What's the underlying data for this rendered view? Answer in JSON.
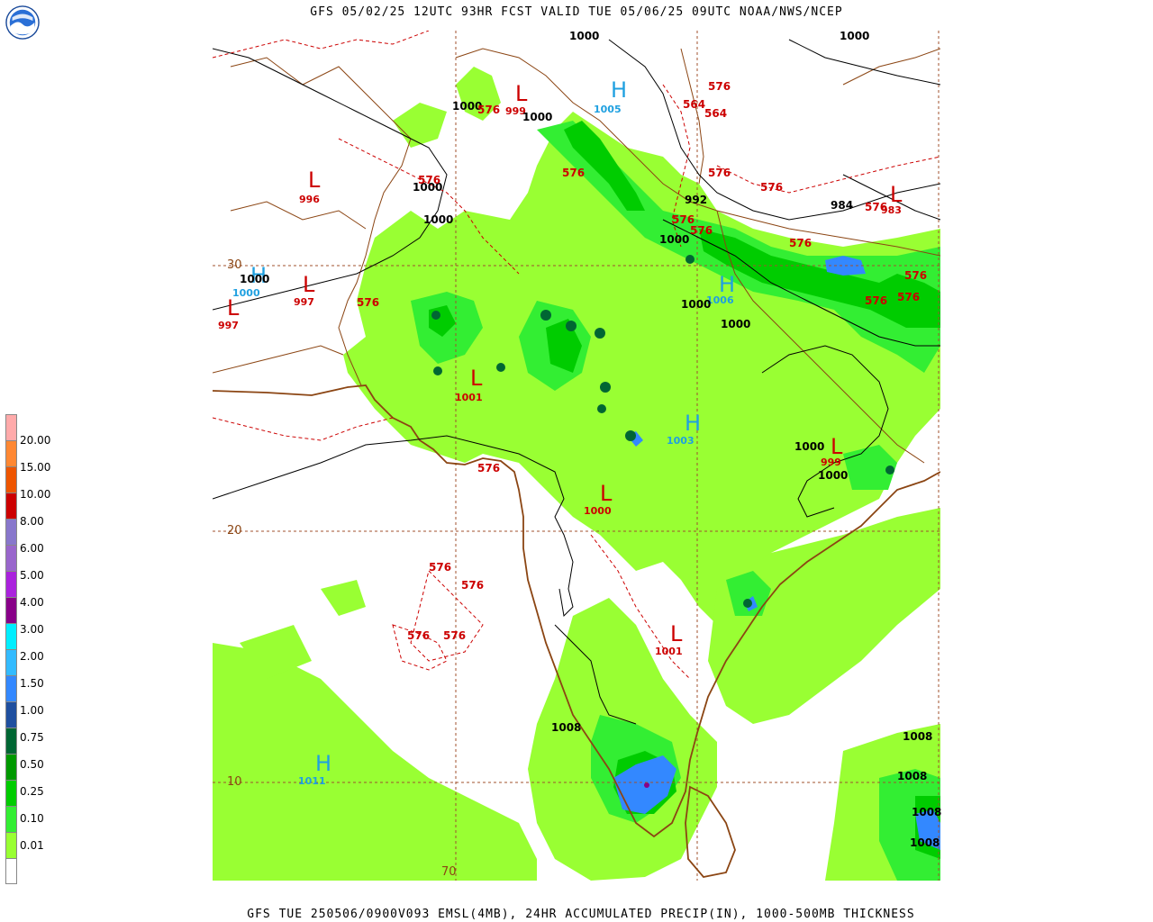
{
  "header": {
    "title": "GFS 05/02/25 12UTC 93HR FCST VALID TUE 05/06/25 09UTC NOAA/NWS/NCEP",
    "footer": "GFS TUE 250506/0900V093 EMSL(4MB), 24HR ACCUMULATED PRECIP(IN), 1000-500MB THICKNESS",
    "logo_text": "NOAA"
  },
  "legend": {
    "labels": [
      "20.00",
      "15.00",
      "10.00",
      "8.00",
      "6.00",
      "5.00",
      "4.00",
      "3.00",
      "2.00",
      "1.50",
      "1.00",
      "0.75",
      "0.50",
      "0.25",
      "0.10",
      "0.01"
    ],
    "colors": [
      "#ffffff",
      "#99ff33",
      "#33ee33",
      "#00cc00",
      "#009900",
      "#006633",
      "#1f4f9f",
      "#3388ff",
      "#33bbff",
      "#00eeff",
      "#880088",
      "#aa22dd",
      "#9966cc",
      "#8877cc",
      "#cc0000",
      "#ee5500",
      "#ff8833",
      "#ffaaaa"
    ]
  },
  "map": {
    "gridlines": {
      "lat_labels": [
        "30",
        "20",
        "10"
      ],
      "lon_labels": [
        "70"
      ]
    },
    "pressure_centers": [
      {
        "letter": "L",
        "value": "999",
        "kind": "low"
      },
      {
        "letter": "H",
        "value": "1005",
        "kind": "high"
      },
      {
        "letter": "L",
        "value": "996",
        "kind": "low"
      },
      {
        "letter": "H",
        "value": "1000",
        "kind": "high"
      },
      {
        "letter": "L",
        "value": "997",
        "kind": "low"
      },
      {
        "letter": "L",
        "value": "997",
        "kind": "low"
      },
      {
        "letter": "L",
        "value": "983",
        "kind": "low"
      },
      {
        "letter": "H",
        "value": "1006",
        "kind": "high"
      },
      {
        "letter": "L",
        "value": "1001",
        "kind": "low"
      },
      {
        "letter": "H",
        "value": "1003",
        "kind": "high"
      },
      {
        "letter": "L",
        "value": "999",
        "kind": "low"
      },
      {
        "letter": "L",
        "value": "1000",
        "kind": "low"
      },
      {
        "letter": "L",
        "value": "1001",
        "kind": "low"
      },
      {
        "letter": "H",
        "value": "1011",
        "kind": "high"
      }
    ],
    "isobar_labels": [
      "1000",
      "1000",
      "1000",
      "1000",
      "1000",
      "1000",
      "992",
      "1000",
      "984",
      "1000",
      "1000",
      "1000",
      "1000",
      "1000",
      "1008",
      "1008",
      "1008",
      "1008",
      "1008"
    ],
    "thickness_labels": [
      "576",
      "576",
      "564",
      "564",
      "576",
      "576",
      "576",
      "576",
      "576",
      "576",
      "576",
      "576",
      "576",
      "576",
      "576",
      "576",
      "576",
      "576",
      "576",
      "576",
      "576",
      "576",
      "576"
    ]
  }
}
